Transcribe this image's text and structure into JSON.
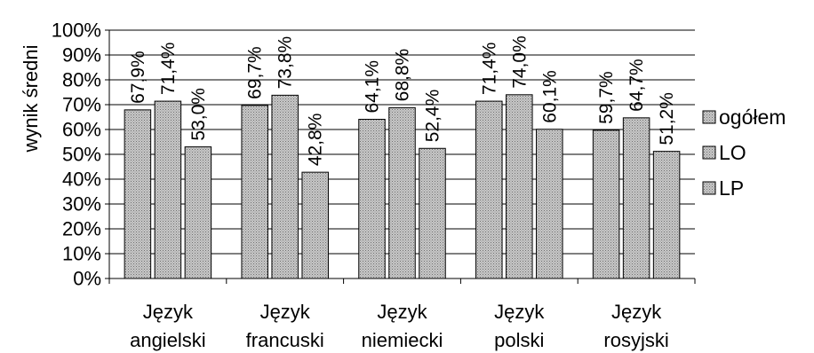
{
  "chart_data": {
    "type": "bar",
    "ylabel": "wynik średni",
    "ylim": [
      0,
      100
    ],
    "yticks": [
      0,
      10,
      20,
      30,
      40,
      50,
      60,
      70,
      80,
      90,
      100
    ],
    "ytick_labels": [
      "0%",
      "10%",
      "20%",
      "30%",
      "40%",
      "50%",
      "60%",
      "70%",
      "80%",
      "90%",
      "100%"
    ],
    "grid": true,
    "legend_position": "right",
    "categories": [
      [
        "Język",
        "angielski"
      ],
      [
        "Język",
        "francuski"
      ],
      [
        "Język",
        "niemiecki"
      ],
      [
        "Język",
        "polski"
      ],
      [
        "Język",
        "rosyjski"
      ]
    ],
    "series": [
      {
        "name": "ogółem",
        "values": [
          67.9,
          69.7,
          64.1,
          71.4,
          59.7
        ],
        "labels": [
          "67,9%",
          "69,7%",
          "64,1%",
          "71,4%",
          "59,7%"
        ]
      },
      {
        "name": "LO",
        "values": [
          71.4,
          73.8,
          68.8,
          74.0,
          64.7
        ],
        "labels": [
          "71,4%",
          "73,8%",
          "68,8%",
          "74,0%",
          "64,7%"
        ]
      },
      {
        "name": "LP",
        "values": [
          53.0,
          42.8,
          52.4,
          60.1,
          51.2
        ],
        "labels": [
          "53,0%",
          "42,8%",
          "52,4%",
          "60,1%",
          "51,2%"
        ]
      }
    ],
    "colors": {
      "bar_fill": "#b4b4b4",
      "bar_stroke": "#000000",
      "grid": "#000000"
    }
  }
}
